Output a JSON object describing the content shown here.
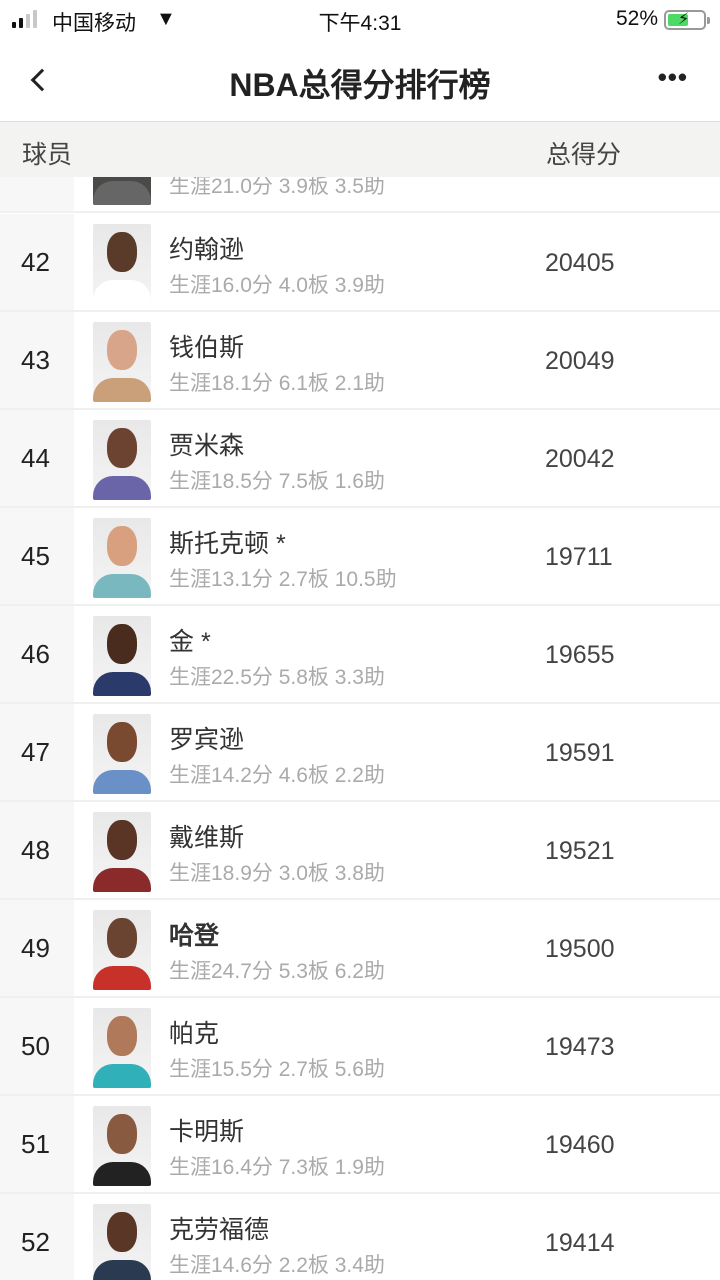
{
  "status_bar": {
    "carrier": "中国移动",
    "time": "下午4:31",
    "battery": "52%",
    "battery_level": 0.52
  },
  "nav": {
    "title": "NBA总得分排行榜",
    "back_icon": "chevron-left-icon",
    "more_label": "•••"
  },
  "table_header": {
    "player": "球员",
    "points": "总得分"
  },
  "partial_row": {
    "stats": "生涯21.0分 3.9板 3.5助"
  },
  "rows": [
    {
      "rank": "42",
      "name": "约翰逊",
      "stats": "生涯16.0分 4.0板 3.9助",
      "points": "20405",
      "skin": "#5a3a28",
      "jersey": "#ffffff"
    },
    {
      "rank": "43",
      "name": "钱伯斯",
      "stats": "生涯18.1分 6.1板 2.1助",
      "points": "20049",
      "skin": "#d9a58a",
      "jersey": "#c9a07a"
    },
    {
      "rank": "44",
      "name": "贾米森",
      "stats": "生涯18.5分 7.5板 1.6助",
      "points": "20042",
      "skin": "#6b4330",
      "jersey": "#6a64a8"
    },
    {
      "rank": "45",
      "name": "斯托克顿 *",
      "stats": "生涯13.1分 2.7板 10.5助",
      "points": "19711",
      "skin": "#d9a080",
      "jersey": "#7ab8c0"
    },
    {
      "rank": "46",
      "name": "金 *",
      "stats": "生涯22.5分 5.8板 3.3助",
      "points": "19655",
      "skin": "#4a2c1e",
      "jersey": "#2a3a6a"
    },
    {
      "rank": "47",
      "name": "罗宾逊",
      "stats": "生涯14.2分 4.6板 2.2助",
      "points": "19591",
      "skin": "#7a4a30",
      "jersey": "#6a90c8"
    },
    {
      "rank": "48",
      "name": "戴维斯",
      "stats": "生涯18.9分 3.0板 3.8助",
      "points": "19521",
      "skin": "#5a3424",
      "jersey": "#8a2a2a"
    },
    {
      "rank": "49",
      "name": "哈登",
      "stats": "生涯24.7分 5.3板 6.2助",
      "points": "19500",
      "skin": "#6a4430",
      "jersey": "#c8302a",
      "bold": true
    },
    {
      "rank": "50",
      "name": "帕克",
      "stats": "生涯15.5分 2.7板 5.6助",
      "points": "19473",
      "skin": "#b07a5a",
      "jersey": "#30b0b8"
    },
    {
      "rank": "51",
      "name": "卡明斯",
      "stats": "生涯16.4分 7.3板 1.9助",
      "points": "19460",
      "skin": "#8a5a40",
      "jersey": "#222222"
    },
    {
      "rank": "52",
      "name": "克劳福德",
      "stats": "生涯14.6分 2.2板 3.4助",
      "points": "19414",
      "skin": "#5a3626",
      "jersey": "#2a3a50"
    }
  ]
}
